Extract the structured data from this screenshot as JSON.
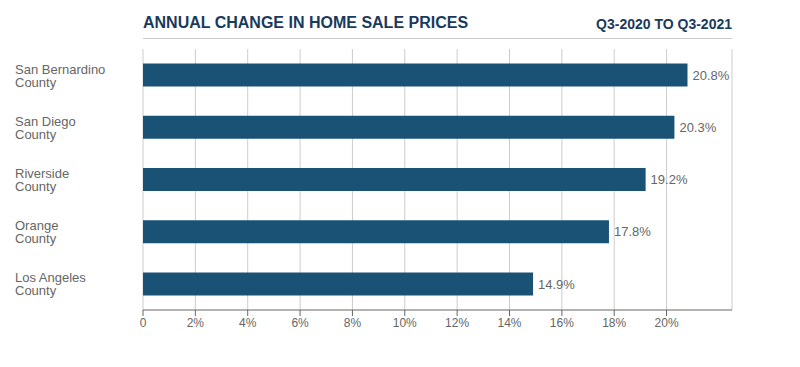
{
  "chart_data": {
    "type": "bar",
    "orientation": "horizontal",
    "title": "ANNUAL CHANGE IN HOME SALE PRICES",
    "subtitle": "Q3-2020 TO Q3-2021",
    "categories": [
      "San Bernardino\nCounty",
      "San Diego\nCounty",
      "Riverside\nCounty",
      "Orange\nCounty",
      "Los Angeles\nCounty"
    ],
    "values": [
      20.8,
      20.3,
      19.2,
      17.8,
      14.9
    ],
    "value_labels": [
      "20.8%",
      "20.3%",
      "19.2%",
      "17.8%",
      "14.9%"
    ],
    "data_labels": true,
    "color": "#1a5276",
    "xlim": [
      0,
      22.5
    ],
    "xticks": [
      0,
      {
        "value": 2,
        "label": "2%"
      },
      {
        "value": 4,
        "label": "4%"
      },
      {
        "value": 6,
        "label": "6%"
      },
      {
        "value": 8,
        "label": "8%"
      },
      {
        "value": 10,
        "label": "10%"
      },
      {
        "value": 12,
        "label": "12%"
      },
      {
        "value": 14,
        "label": "14%"
      },
      {
        "value": 16,
        "label": "16%"
      },
      {
        "value": 18,
        "label": "18%"
      },
      {
        "value": 20,
        "label": "20%"
      }
    ],
    "grid": true
  }
}
